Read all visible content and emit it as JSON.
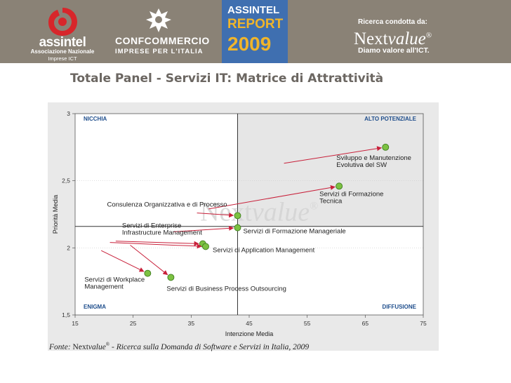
{
  "header": {
    "assintel": {
      "brand": "assintel",
      "line1": "Associazione Nazionale",
      "line2": "Imprese ICT"
    },
    "confcommercio": {
      "brand": "CONFCOMMERCIO",
      "sub": "IMPRESE PER L'ITALIA"
    },
    "report": {
      "line1": "ASSINTEL",
      "line2": "REPORT",
      "line3": "2009"
    },
    "research_label": "Ricerca condotta da:",
    "nextvalue_logo": {
      "text": "Next",
      "italic": "value",
      "mark": "®"
    },
    "tagline": "Diamo valore all'ICT."
  },
  "title": "Totale Panel - Servizi IT: Matrice di Attrattività",
  "chart_data": {
    "type": "scatter",
    "xlabel": "Intenzione Media",
    "ylabel": "Priorità Media",
    "xlim": [
      15,
      75
    ],
    "ylim": [
      1.5,
      3
    ],
    "xticks": [
      "15",
      "25",
      "35",
      "45",
      "55",
      "65",
      "75"
    ],
    "yticks": [
      {
        "value": 3,
        "label": "3"
      },
      {
        "value": 2.5,
        "label": "2,5"
      },
      {
        "value": 2,
        "label": "2"
      },
      {
        "value": 1.5,
        "label": "1,5"
      }
    ],
    "divider_x": 43,
    "divider_y": 2.16,
    "quadrants": [
      {
        "name": "NICCHIA",
        "corner": "top-left"
      },
      {
        "name": "ALTO POTENZIALE",
        "corner": "top-right"
      },
      {
        "name": "ENIGMA",
        "corner": "bottom-left"
      },
      {
        "name": "DIFFUSIONE",
        "corner": "bottom-right"
      }
    ],
    "watermark": {
      "text": "Next",
      "italic": "value",
      "mark": "®"
    },
    "points": [
      {
        "lines": [
          "Sviluppo e Manutenzione",
          "Evolutiva del SW"
        ],
        "x": 68.5,
        "y": 2.75,
        "from": [
          51,
          2.63
        ]
      },
      {
        "lines": [
          "Servizi di Formazione",
          "Tecnica"
        ],
        "x": 60.5,
        "y": 2.46,
        "from": [
          38,
          2.29
        ]
      },
      {
        "lines": [
          "Consulenza Organizzativa e di Processo"
        ],
        "x": 43,
        "y": 2.24,
        "from": [
          36,
          2.26
        ]
      },
      {
        "lines": [
          "Servizi di Formazione Manageriale"
        ],
        "x": 43,
        "y": 2.15,
        "from": [
          32,
          2.12
        ]
      },
      {
        "lines": [
          "Servizi di Enterprise",
          "Infrastructure Management"
        ],
        "x": 37,
        "y": 2.03,
        "from": [
          22,
          2.05
        ]
      },
      {
        "lines": [
          "Servizi di Application Management"
        ],
        "x": 37.5,
        "y": 2.01,
        "from": [
          21,
          2.04
        ]
      },
      {
        "lines": [
          "Servizi di Workplace",
          "Management"
        ],
        "x": 27.5,
        "y": 1.81,
        "from": [
          19.5,
          1.98
        ]
      },
      {
        "lines": [
          "Servizi di Business Process Outsourcing"
        ],
        "x": 31.5,
        "y": 1.78,
        "from": [
          24.5,
          2.02
        ]
      }
    ]
  },
  "footer": {
    "label": "Fonte:",
    "brand": "Next",
    "brand_italic": "value",
    "mark": "®",
    "text": " - Ricerca sulla Domanda di Software e Servizi in Italia, 2009"
  }
}
